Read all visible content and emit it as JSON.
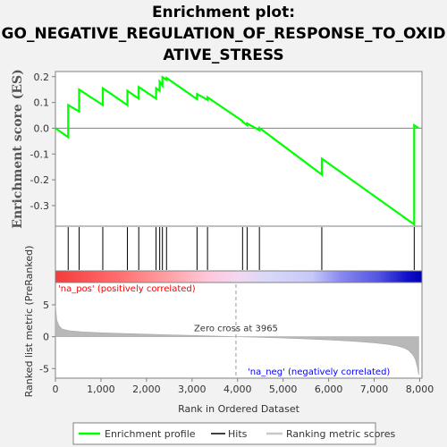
{
  "title_lines": [
    "Enrichment plot:",
    "GO_NEGATIVE_REGULATION_OF_RESPONSE_TO_OXID",
    "ATIVE_STRESS"
  ],
  "colors": {
    "profile": "#00ff00",
    "hits": "#000000",
    "ranking": "#c8c8c8",
    "pos_label": "#ff0000",
    "neg_label": "#0000ff"
  },
  "legend": {
    "profile": "Enrichment profile",
    "hits": "Hits",
    "ranking": "Ranking metric scores"
  },
  "chart_data": [
    {
      "type": "line",
      "panel": "enrichment-score",
      "ylabel": "Enrichment score (ES)",
      "xlim": [
        0,
        8050
      ],
      "ylim": [
        -0.38,
        0.22
      ],
      "yticks": [
        -0.3,
        -0.2,
        -0.1,
        0.0,
        0.1,
        0.2
      ],
      "yticklabels": [
        "-0.3",
        "-0.2",
        "-0.1",
        "0.0",
        "0.1",
        "0.2"
      ],
      "grid": false,
      "series": [
        {
          "x": [
            0,
            280,
            280,
            520,
            520,
            1040,
            1040,
            1580,
            1580,
            1830,
            1830,
            2210,
            2210,
            2290,
            2290,
            2350,
            2350,
            2440,
            2440,
            3110,
            3110,
            3340,
            3340,
            4110,
            4110,
            4210,
            4210,
            4480,
            4480,
            5850,
            5850,
            7880,
            7880,
            7980
          ],
          "y": [
            0.0,
            -0.035,
            0.09,
            0.065,
            0.15,
            0.09,
            0.155,
            0.09,
            0.145,
            0.115,
            0.16,
            0.115,
            0.155,
            0.145,
            0.18,
            0.165,
            0.198,
            0.188,
            0.195,
            0.113,
            0.133,
            0.11,
            0.12,
            0.028,
            0.025,
            0.012,
            0.019,
            -0.008,
            0.001,
            -0.18,
            -0.118,
            -0.373,
            0.012,
            0.0
          ]
        }
      ]
    },
    {
      "type": "scatter",
      "panel": "hits",
      "hits": [
        280,
        520,
        1040,
        1580,
        1830,
        2210,
        2290,
        2350,
        2440,
        3110,
        3340,
        4110,
        4210,
        4480,
        5850,
        7880
      ]
    },
    {
      "type": "area",
      "panel": "ranked-list",
      "ylabel": "Ranked list metric (PreRanked)",
      "xlabel": "Rank in Ordered Dataset",
      "xlim": [
        0,
        8050
      ],
      "ylim": [
        -6.5,
        8.5
      ],
      "xticks": [
        0,
        1000,
        2000,
        3000,
        4000,
        5000,
        6000,
        7000,
        8000
      ],
      "xticklabels": [
        "0",
        "1,000",
        "2,000",
        "3,000",
        "4,000",
        "5,000",
        "6,000",
        "7,000",
        "8,000"
      ],
      "yticks": [
        -5,
        0,
        5
      ],
      "yticklabels": [
        "-5",
        "0",
        "5"
      ],
      "zero_cross": 3965,
      "zero_cross_label": "Zero cross at 3965",
      "pos_label": "'na_pos' (positively correlated)",
      "neg_label": "'na_neg' (negatively correlated)",
      "series": [
        {
          "x": [
            0,
            30,
            80,
            150,
            300,
            600,
            1000,
            1500,
            2000,
            2500,
            3000,
            3500,
            3965,
            4500,
            5000,
            5500,
            6000,
            6500,
            7000,
            7300,
            7500,
            7650,
            7750,
            7850,
            7900,
            7950,
            7980
          ],
          "y": [
            5.0,
            2.6,
            1.7,
            1.2,
            0.95,
            0.75,
            0.62,
            0.5,
            0.4,
            0.3,
            0.2,
            0.1,
            0.0,
            -0.1,
            -0.2,
            -0.35,
            -0.5,
            -0.7,
            -0.95,
            -1.2,
            -1.45,
            -1.75,
            -2.1,
            -2.8,
            -3.5,
            -4.8,
            -6.0
          ]
        }
      ]
    }
  ]
}
